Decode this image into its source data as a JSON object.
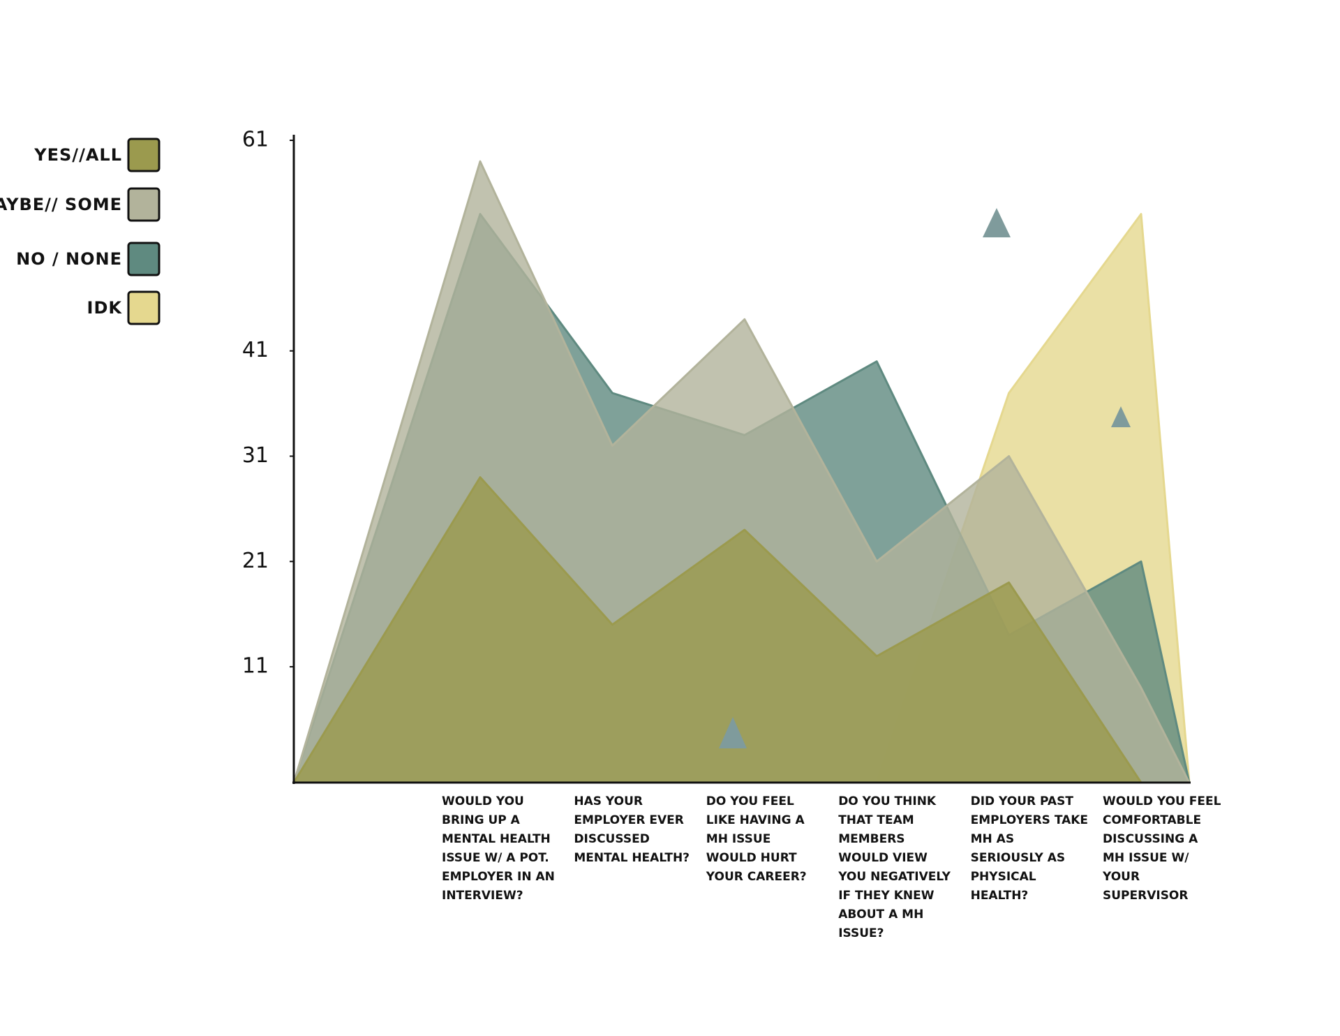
{
  "chart_data": {
    "type": "area",
    "categories": [
      null,
      "Would you bring up a mental health issue w/ a pot. employer in an interview?",
      "Has your employer ever discussed mental health?",
      "Do you feel like having a MH issue would hurt your career?",
      "Do you think that team members would view you negatively if they knew about a MH issue?",
      "Did your past employers take MH as seriously as physical health?",
      "Would you feel comfortable discussing a MH issue w/ your supervisor",
      null
    ],
    "series": [
      {
        "name": "YES//ALL",
        "color": "#9b9a4e",
        "values": [
          0,
          29,
          15,
          24,
          12,
          19,
          0,
          0
        ]
      },
      {
        "name": "MAYBE// SOME",
        "color": "#b2b39b",
        "values": [
          0,
          59,
          32,
          44,
          21,
          31,
          9,
          0
        ]
      },
      {
        "name": "NO / NONE",
        "color": "#5f8a80",
        "values": [
          0,
          54,
          37,
          33,
          40,
          14,
          21,
          0
        ]
      },
      {
        "name": "IDK",
        "color": "#e5d88f",
        "values": [
          0,
          0,
          0,
          0,
          0,
          37,
          54,
          0
        ]
      }
    ],
    "ylim": [
      0,
      61
    ],
    "yticks": [
      11,
      21,
      31,
      41,
      61
    ]
  }
}
